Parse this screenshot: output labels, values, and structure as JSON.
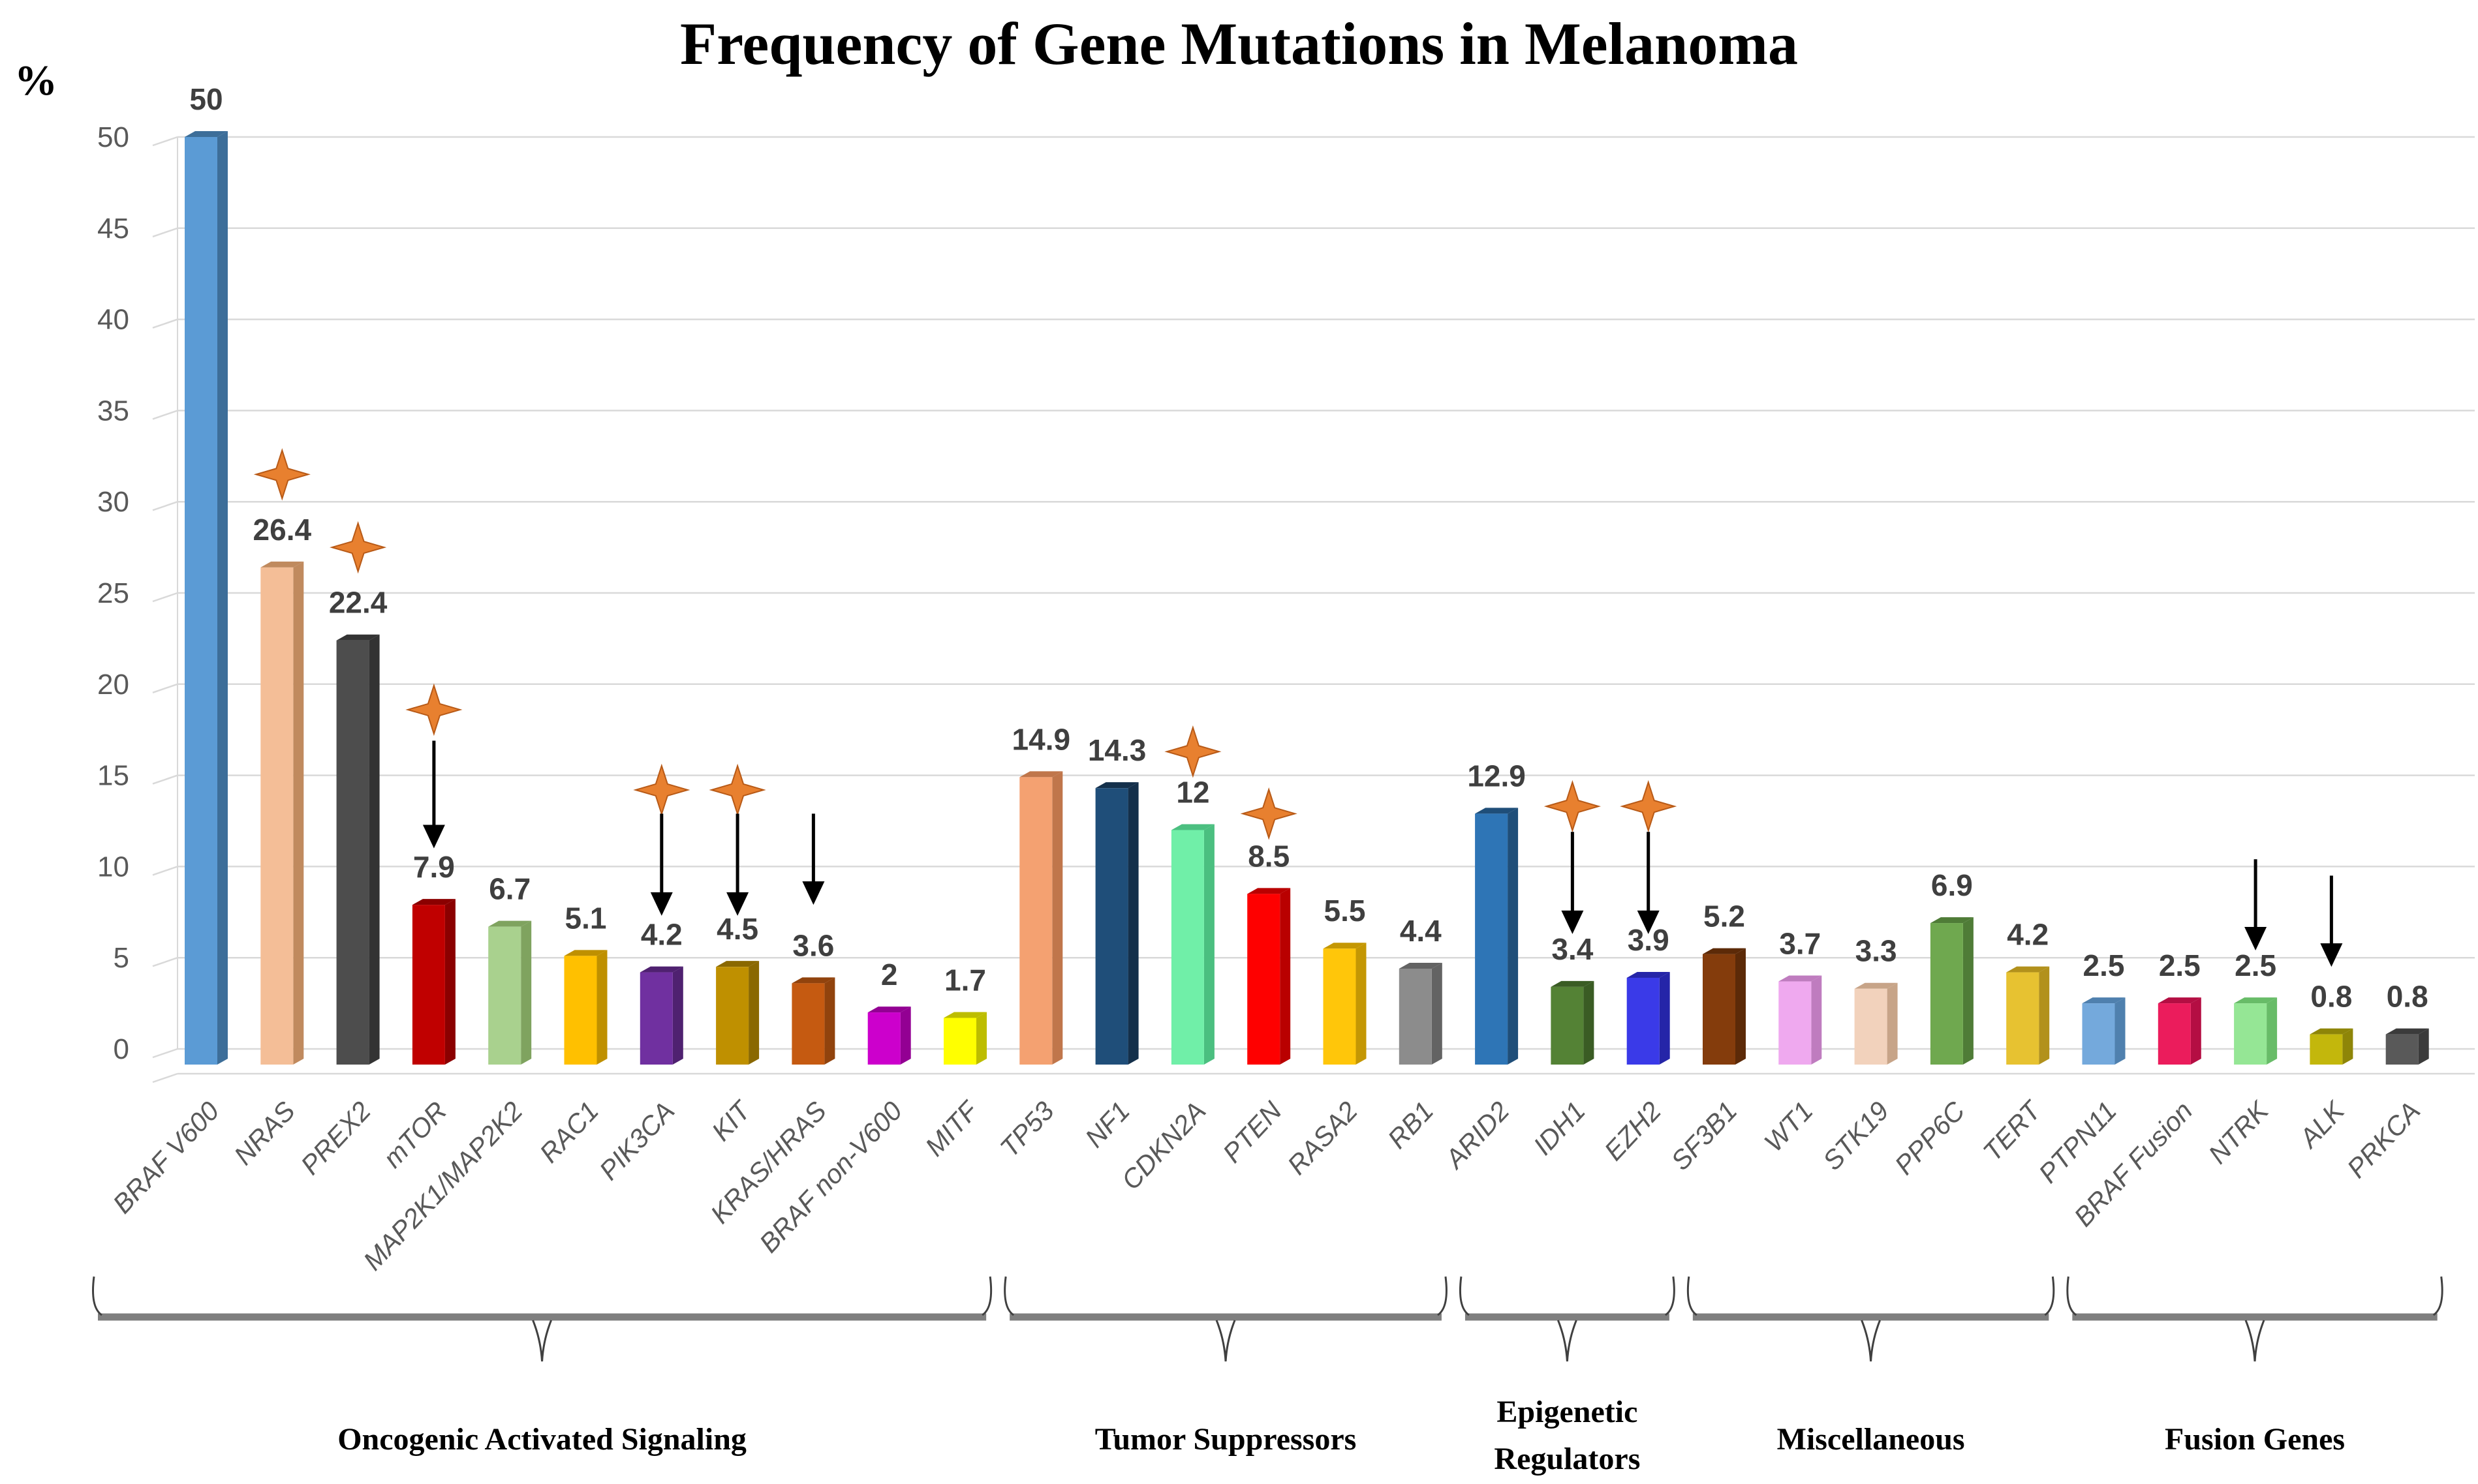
{
  "header": {
    "title": "Frequency of Gene Mutations in Melanoma"
  },
  "y_axis": {
    "unit_label": "%",
    "ticks": [
      0,
      5,
      10,
      15,
      20,
      25,
      30,
      35,
      40,
      45,
      50
    ],
    "max": 50
  },
  "chart_data": {
    "type": "bar",
    "title": "Frequency of Gene Mutations in Melanoma",
    "xlabel": "",
    "ylabel": "%",
    "ylim": [
      0,
      50
    ],
    "grid": true,
    "legend": "none",
    "categories": [
      "BRAF V600",
      "NRAS",
      "PREX2",
      "mTOR",
      "MAP2K1/MAP2K2",
      "RAC1",
      "PIK3CA",
      "KIT",
      "KRAS/HRAS",
      "BRAF non-V600",
      "MITF",
      "TP53",
      "NF1",
      "CDKN2A",
      "PTEN",
      "RASA2",
      "RB1",
      "ARID2",
      "IDH1",
      "EZH2",
      "SF3B1",
      "WT1",
      "STK19",
      "PPP6C",
      "TERT",
      "PTPN11",
      "BRAF Fusion",
      "NTRK",
      "ALK",
      "PRKCA"
    ],
    "values": [
      50,
      26.4,
      22.4,
      7.9,
      6.7,
      5.1,
      4.2,
      4.5,
      3.6,
      2,
      1.7,
      14.9,
      14.3,
      12,
      8.5,
      5.5,
      4.4,
      12.9,
      3.4,
      3.9,
      5.2,
      3.7,
      3.3,
      6.9,
      4.2,
      2.5,
      2.5,
      2.5,
      0.8,
      0.8
    ],
    "bar_colors": [
      {
        "face": "#5B9BD5",
        "side": "#3D6E99"
      },
      {
        "face": "#F4BE97",
        "side": "#C08A5E"
      },
      {
        "face": "#4D4D4D",
        "side": "#333333"
      },
      {
        "face": "#C00000",
        "side": "#8B0000"
      },
      {
        "face": "#A9D18E",
        "side": "#7FA35F"
      },
      {
        "face": "#FFC000",
        "side": "#BF9000"
      },
      {
        "face": "#7030A0",
        "side": "#4F2170"
      },
      {
        "face": "#BF9000",
        "side": "#8A6800"
      },
      {
        "face": "#C55A11",
        "side": "#91430D"
      },
      {
        "face": "#CC00CC",
        "side": "#930093"
      },
      {
        "face": "#FFFF00",
        "side": "#BDBD00"
      },
      {
        "face": "#F4A171",
        "side": "#C0764B"
      },
      {
        "face": "#1F4E79",
        "side": "#14304B"
      },
      {
        "face": "#70EFA8",
        "side": "#4BBF80"
      },
      {
        "face": "#FE0000",
        "side": "#B90000"
      },
      {
        "face": "#FFC60A",
        "side": "#C49704"
      },
      {
        "face": "#8C8C8C",
        "side": "#636363"
      },
      {
        "face": "#2E75B6",
        "side": "#1F4E79"
      },
      {
        "face": "#548235",
        "side": "#3A5C24"
      },
      {
        "face": "#3A3AE8",
        "side": "#2525A8"
      },
      {
        "face": "#843C0C",
        "side": "#5C2A08"
      },
      {
        "face": "#EFA9EF",
        "side": "#BF7CBF"
      },
      {
        "face": "#F2D2BC",
        "side": "#C7A488"
      },
      {
        "face": "#6FA84F",
        "side": "#4F7C37"
      },
      {
        "face": "#E7C231",
        "side": "#B2911C"
      },
      {
        "face": "#74A9DC",
        "side": "#4F80AE"
      },
      {
        "face": "#EB1C5C",
        "side": "#B40E43"
      },
      {
        "face": "#95E695",
        "side": "#68BC68"
      },
      {
        "face": "#C3B70C",
        "side": "#8E8508"
      },
      {
        "face": "#595959",
        "side": "#3B3B3B"
      }
    ],
    "annotation_colors": {
      "star_fill": "#E8802F",
      "star_stroke": "#B85A17",
      "arrow": "#000000"
    },
    "markers": [
      {
        "gene": "NRAS",
        "star": 31.5
      },
      {
        "gene": "PREX2",
        "star": 27.5
      },
      {
        "gene": "mTOR",
        "star": 18.6,
        "arrow": [
          16.9,
          11.0
        ]
      },
      {
        "gene": "PIK3CA",
        "star": 14.2,
        "arrow": [
          12.9,
          7.3
        ]
      },
      {
        "gene": "KIT",
        "star": 14.2,
        "arrow": [
          12.9,
          7.3
        ]
      },
      {
        "gene": "KRAS/HRAS",
        "arrow": [
          12.9,
          7.9
        ]
      },
      {
        "gene": "CDKN2A",
        "star": 16.3
      },
      {
        "gene": "PTEN",
        "star": 12.9
      },
      {
        "gene": "IDH1",
        "star": 13.3,
        "arrow": [
          11.9,
          6.3
        ]
      },
      {
        "gene": "EZH2",
        "star": 13.3,
        "arrow": [
          11.9,
          6.3
        ]
      },
      {
        "gene": "NTRK",
        "arrow": [
          10.4,
          5.4
        ]
      },
      {
        "gene": "ALK",
        "arrow": [
          9.5,
          4.5
        ]
      }
    ],
    "groups": [
      {
        "label": "Oncogenic Activated Signaling",
        "from": 0,
        "to": 10
      },
      {
        "label": "Tumor Suppressors",
        "from": 11,
        "to": 16
      },
      {
        "label": "Epigenetic\nRegulators",
        "from": 17,
        "to": 19
      },
      {
        "label": "Miscellaneous",
        "from": 20,
        "to": 24
      },
      {
        "label": "Fusion Genes",
        "from": 25,
        "to": 29
      }
    ],
    "style_colors": {
      "gridline": "#D9D9D9",
      "tick_text": "#595959",
      "category_text": "#595959",
      "value_text": "#3F3F3F",
      "brace_bar": "#7F7F7F",
      "brace_line": "#404040"
    }
  }
}
